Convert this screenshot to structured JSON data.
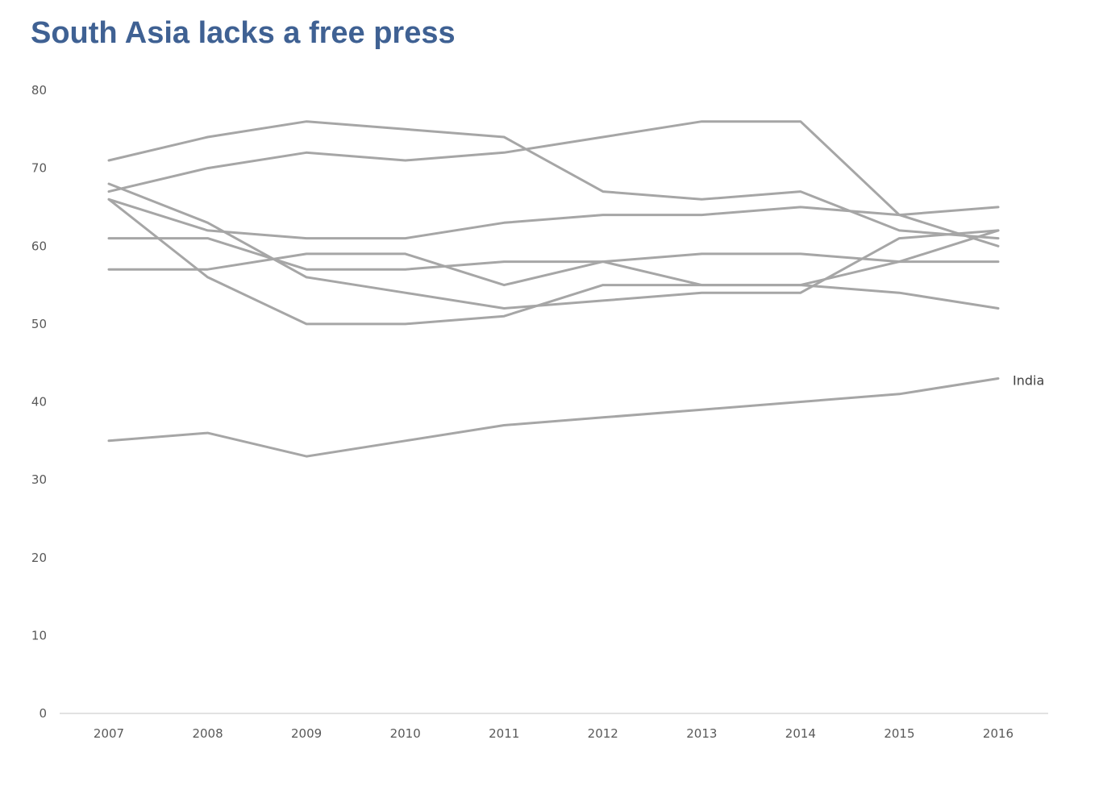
{
  "chart_data": {
    "type": "line",
    "title": "South Asia lacks a free press",
    "xlabel": "",
    "ylabel": "",
    "x": [
      "2007",
      "2008",
      "2009",
      "2010",
      "2011",
      "2012",
      "2013",
      "2014",
      "2015",
      "2016"
    ],
    "ylim": [
      0,
      80
    ],
    "yticks": [
      0,
      10,
      20,
      30,
      40,
      50,
      60,
      70,
      80
    ],
    "grid": false,
    "legend": "none",
    "line_color": "#a6a6a6",
    "series": [
      {
        "values": [
          71,
          74,
          76,
          75,
          74,
          67,
          66,
          67,
          62,
          61
        ]
      },
      {
        "values": [
          67,
          70,
          72,
          71,
          72,
          74,
          76,
          76,
          64,
          60
        ]
      },
      {
        "values": [
          68,
          63,
          56,
          54,
          52,
          53,
          54,
          54,
          61,
          62
        ]
      },
      {
        "values": [
          66,
          62,
          61,
          61,
          63,
          64,
          64,
          65,
          64,
          65
        ]
      },
      {
        "values": [
          66,
          56,
          50,
          50,
          51,
          55,
          55,
          55,
          58,
          62
        ]
      },
      {
        "values": [
          61,
          61,
          57,
          57,
          58,
          58,
          59,
          59,
          58,
          58
        ]
      },
      {
        "values": [
          57,
          57,
          59,
          59,
          55,
          58,
          55,
          55,
          54,
          52
        ]
      },
      {
        "name": "India",
        "values": [
          35,
          36,
          33,
          35,
          37,
          38,
          39,
          40,
          41,
          43
        ]
      }
    ]
  }
}
